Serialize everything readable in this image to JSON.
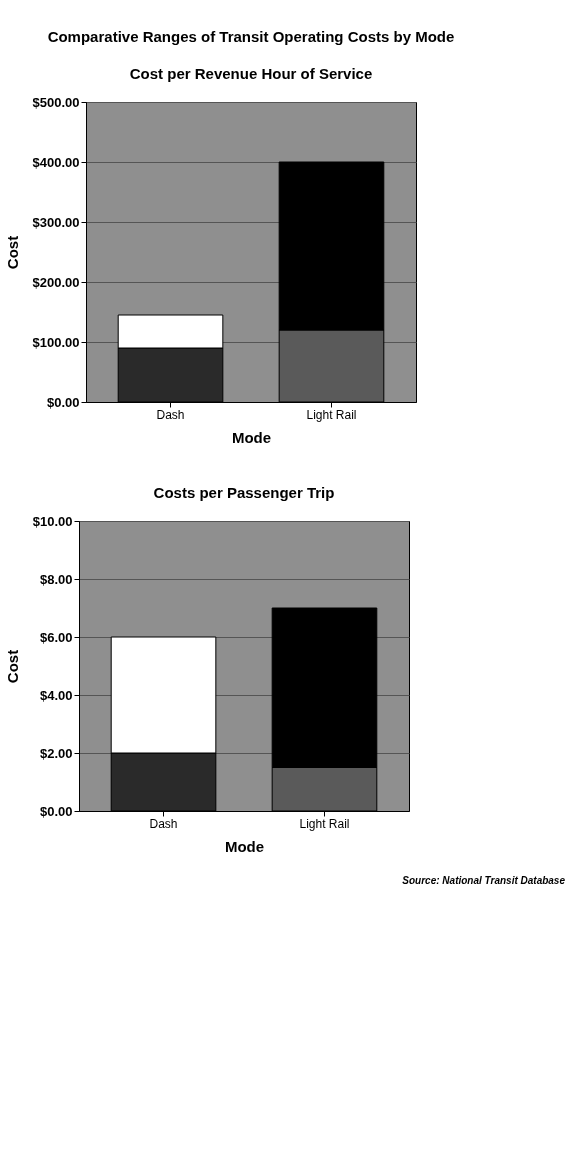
{
  "chart_data": [
    {
      "type": "bar",
      "title": "Comparative Ranges of Transit Operating Costs by Mode",
      "subtitle": "Cost per Revenue Hour of Service",
      "xlabel": "Mode",
      "ylabel": "Cost",
      "categories": [
        "Dash",
        "Light Rail"
      ],
      "stacked": true,
      "grid": "y",
      "series": [
        {
          "colors": [
            "#2a2a2a",
            "#5a5a5a"
          ],
          "values": [
            90,
            120
          ]
        },
        {
          "colors": [
            "#ffffff",
            "#000000"
          ],
          "values": [
            55,
            280
          ]
        }
      ],
      "ylim": [
        0,
        500
      ],
      "yticks": [
        {
          "value": 0,
          "label": "$0.00"
        },
        {
          "value": 100,
          "label": "$100.00"
        },
        {
          "value": 200,
          "label": "$200.00"
        },
        {
          "value": 300,
          "label": "$300.00"
        },
        {
          "value": 400,
          "label": "$400.00"
        },
        {
          "value": 500,
          "label": "$500.00"
        }
      ]
    },
    {
      "type": "bar",
      "title": "Costs per Passenger Trip",
      "xlabel": "Mode",
      "ylabel": "Cost",
      "categories": [
        "Dash",
        "Light Rail"
      ],
      "stacked": true,
      "grid": "y",
      "series": [
        {
          "colors": [
            "#2a2a2a",
            "#5a5a5a"
          ],
          "values": [
            2,
            1.5
          ]
        },
        {
          "colors": [
            "#ffffff",
            "#000000"
          ],
          "values": [
            4,
            5.5
          ]
        }
      ],
      "ylim": [
        0,
        10
      ],
      "yticks": [
        {
          "value": 0,
          "label": "$0.00"
        },
        {
          "value": 2,
          "label": "$2.00"
        },
        {
          "value": 4,
          "label": "$4.00"
        },
        {
          "value": 6,
          "label": "$6.00"
        },
        {
          "value": 8,
          "label": "$8.00"
        },
        {
          "value": 10,
          "label": "$10.00"
        }
      ],
      "annotations": [
        "Source:  National Transit Database"
      ]
    }
  ]
}
